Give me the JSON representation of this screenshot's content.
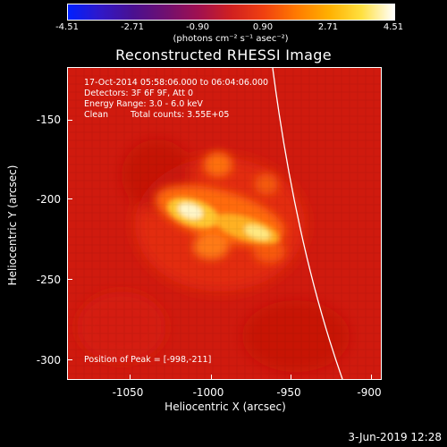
{
  "colorbar": {
    "ticks": [
      "-4.51",
      "-2.71",
      "-0.90",
      "0.90",
      "2.71",
      "4.51"
    ],
    "unit": "(photons cm⁻² s⁻¹ asec⁻²)",
    "range": [
      -4.51,
      4.51
    ]
  },
  "title": "Reconstructed RHESSI Image",
  "annotations": {
    "time": "17-Oct-2014 05:58:06.000 to 06:04:06.000",
    "detectors": "Detectors: 3F 6F 9F, Att 0",
    "energy": "Energy Range: 3.0 - 6.0 keV",
    "method": "Clean",
    "counts": "Total counts: 3.55E+05",
    "peak": "Position of Peak = [-998,-211]"
  },
  "axes": {
    "xlabel": "Heliocentric X (arcsec)",
    "ylabel": "Heliocentric Y (arcsec)",
    "xticks": [
      "-1050",
      "-1000",
      "-950",
      "-900"
    ],
    "yticks": [
      "-150",
      "-200",
      "-250",
      "-300"
    ],
    "xlim": [
      -1080,
      -888
    ],
    "ylim": [
      -313,
      -122
    ]
  },
  "limb_curve": true,
  "colors": {
    "background": "#000000",
    "image_base": "#d21a0c",
    "peak": "#fffbe0",
    "limb": "#ffffff"
  },
  "footer": {
    "timestamp": "3-Jun-2019 12:28"
  }
}
